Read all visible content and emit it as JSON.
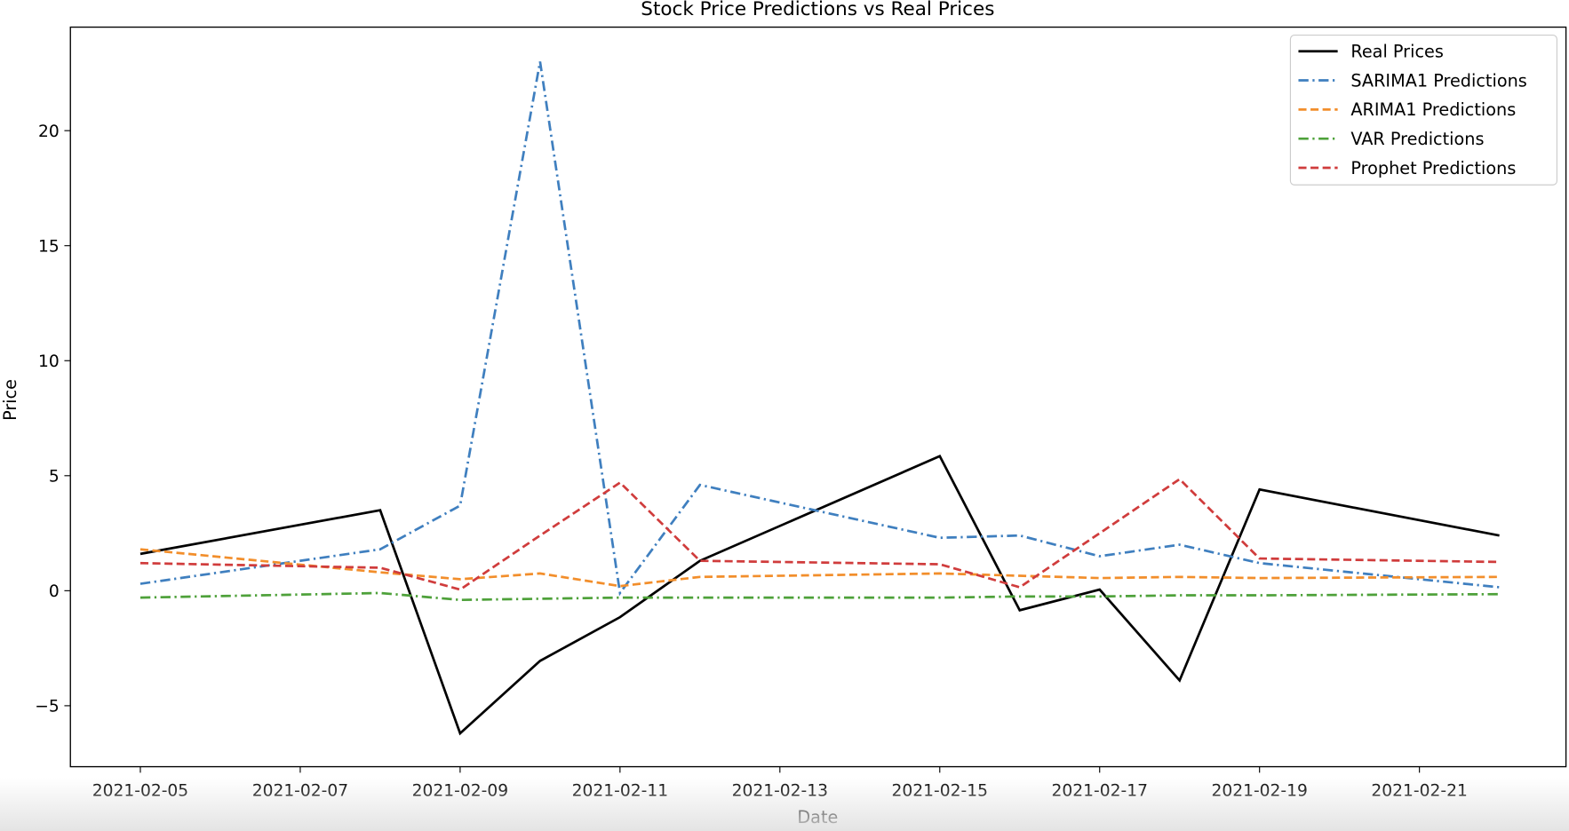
{
  "chart_data": {
    "type": "line",
    "title": "Stock Price Predictions vs Real Prices",
    "xlabel": "Date",
    "ylabel": "Price",
    "x": [
      "2021-02-05",
      "2021-02-08",
      "2021-02-09",
      "2021-02-10",
      "2021-02-11",
      "2021-02-12",
      "2021-02-15",
      "2021-02-16",
      "2021-02-17",
      "2021-02-18",
      "2021-02-19",
      "2021-02-22"
    ],
    "xlim": [
      "2021-02-04T03:00",
      "2021-02-22T20:00"
    ],
    "ylim": [
      -7.65,
      24.5
    ],
    "x_ticks": [
      "2021-02-05",
      "2021-02-07",
      "2021-02-09",
      "2021-02-11",
      "2021-02-13",
      "2021-02-15",
      "2021-02-17",
      "2021-02-19",
      "2021-02-21"
    ],
    "y_ticks": [
      -5,
      0,
      5,
      10,
      15,
      20
    ],
    "y_tick_labels": [
      "−5",
      "0",
      "5",
      "10",
      "15",
      "20"
    ],
    "grid": false,
    "legend_position": "top-right",
    "series": [
      {
        "name": "Real Prices",
        "color": "#000000",
        "style": "solid",
        "values": [
          1.6,
          3.5,
          -6.2,
          -3.05,
          -1.15,
          1.3,
          5.85,
          -0.85,
          0.05,
          -3.9,
          4.4,
          2.4
        ]
      },
      {
        "name": "SARIMA1 Predictions",
        "color": "#3f7fbf",
        "style": "dashdot",
        "values": [
          0.3,
          1.8,
          3.7,
          23.0,
          -0.1,
          4.6,
          2.3,
          2.4,
          1.5,
          2.0,
          1.2,
          0.15
        ]
      },
      {
        "name": "ARIMA1 Predictions",
        "color": "#f28e2b",
        "style": "dashed",
        "values": [
          1.8,
          0.8,
          0.5,
          0.75,
          0.2,
          0.6,
          0.75,
          0.65,
          0.55,
          0.6,
          0.55,
          0.6
        ]
      },
      {
        "name": "VAR Predictions",
        "color": "#4ea13a",
        "style": "dashdot",
        "values": [
          -0.3,
          -0.1,
          -0.4,
          -0.35,
          -0.3,
          -0.3,
          -0.3,
          -0.25,
          -0.25,
          -0.2,
          -0.2,
          -0.15
        ]
      },
      {
        "name": "Prophet Predictions",
        "color": "#d03c3c",
        "style": "dashed",
        "values": [
          1.2,
          1.0,
          0.05,
          2.4,
          4.7,
          1.3,
          1.15,
          0.15,
          2.5,
          4.85,
          1.4,
          1.25
        ]
      }
    ]
  }
}
